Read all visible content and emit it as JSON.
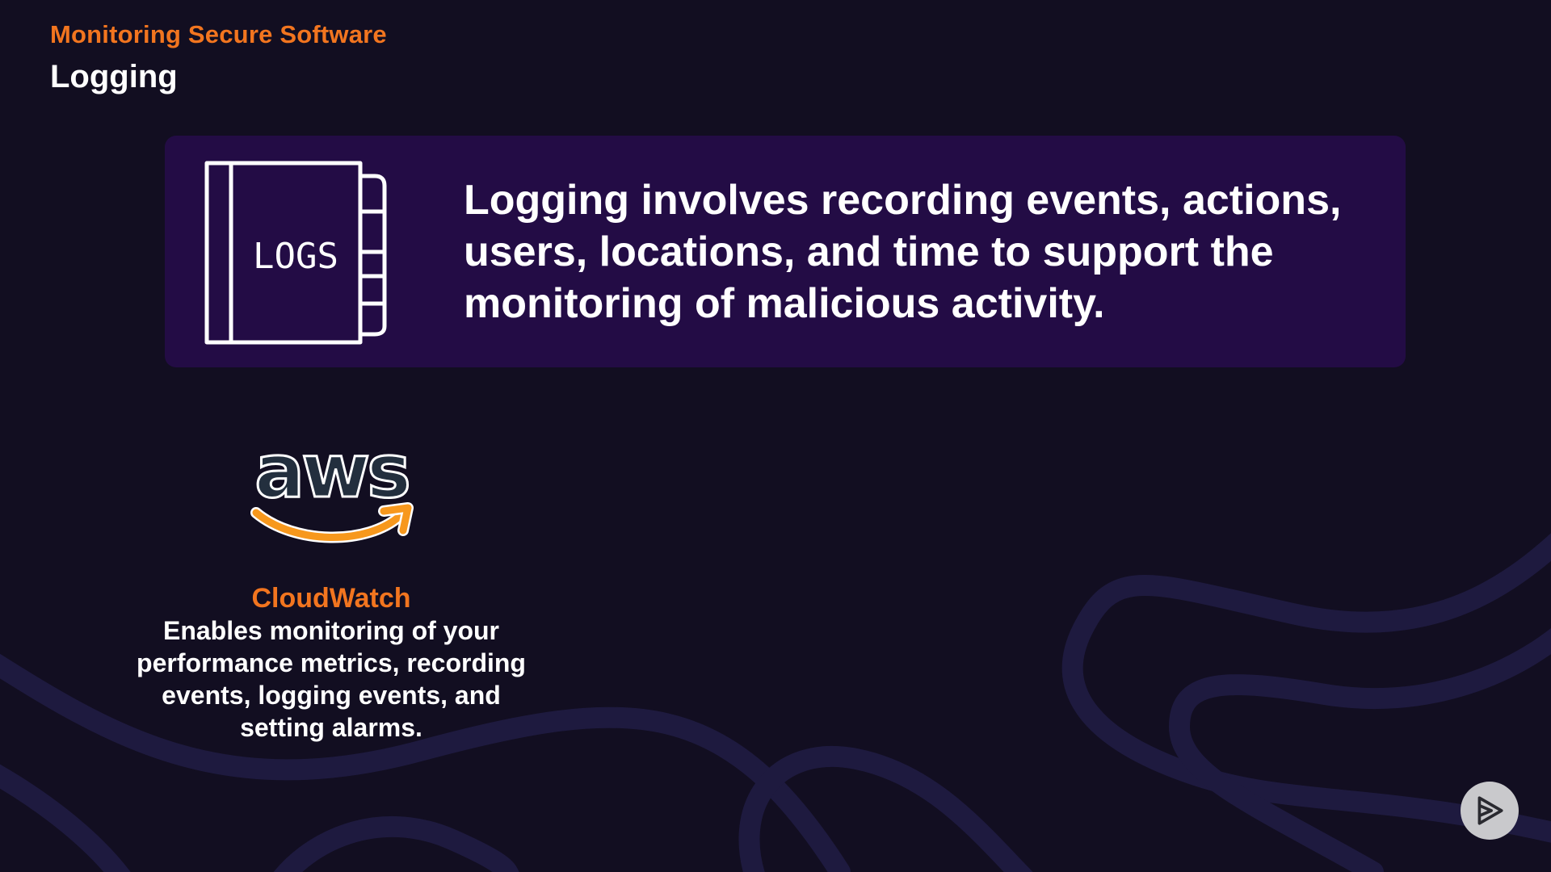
{
  "header": {
    "course_title": "Monitoring Secure Software",
    "section_title": "Logging"
  },
  "definition": {
    "icon_label": "LOGS",
    "text": "Logging involves recording events, actions, users, locations, and time to support the monitoring of malicious activity."
  },
  "service": {
    "logo_text": "aws",
    "name": "CloudWatch",
    "description": "Enables monitoring of your performance metrics, recording events, logging events, and setting alarms."
  },
  "colors": {
    "background": "#120e21",
    "card": "#230c45",
    "accent_orange": "#f2751f",
    "text_white": "#ffffff",
    "aws_orange": "#f7981d",
    "aws_dark": "#232f3e"
  },
  "icons": {
    "logs_book": "book-icon",
    "aws_logo": "aws-logo",
    "play_badge": "play-icon"
  }
}
